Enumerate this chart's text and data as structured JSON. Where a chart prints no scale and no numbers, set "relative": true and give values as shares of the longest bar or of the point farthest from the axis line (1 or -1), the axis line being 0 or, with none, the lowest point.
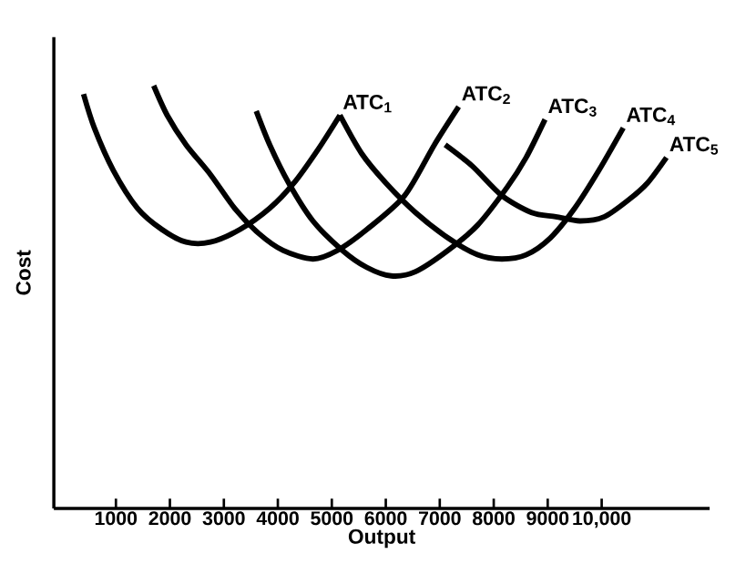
{
  "chart_data": {
    "type": "line",
    "xlabel": "Output",
    "ylabel": "Cost",
    "relative": true,
    "legend": false,
    "grid": false,
    "marker": "none",
    "line_style": "solid",
    "xlim": [
      -150,
      12000
    ],
    "xticks": [
      {
        "value": 1000,
        "label": "1000"
      },
      {
        "value": 2000,
        "label": "2000"
      },
      {
        "value": 3000,
        "label": "3000"
      },
      {
        "value": 4000,
        "label": "4000"
      },
      {
        "value": 5000,
        "label": "5000"
      },
      {
        "value": 6000,
        "label": "6000"
      },
      {
        "value": 7000,
        "label": "7000"
      },
      {
        "value": 8000,
        "label": "8000"
      },
      {
        "value": 9000,
        "label": "9000"
      },
      {
        "value": 10000,
        "label": "10,000"
      }
    ],
    "series": [
      {
        "name": "ATC$_{1}$",
        "color": "#000000",
        "x": [
          400,
          600,
          950,
          1400,
          1850,
          2300,
          2750,
          3300,
          3850,
          4300,
          4750,
          5150
        ],
        "values": [
          0.98,
          0.9,
          0.8,
          0.71,
          0.66,
          0.63,
          0.63,
          0.66,
          0.71,
          0.77,
          0.85,
          0.93
        ]
      },
      {
        "name": "ATC$_{2}$",
        "color": "#000000",
        "x": [
          1700,
          1950,
          2300,
          2750,
          3200,
          3650,
          4100,
          4650,
          5100,
          5650,
          6350,
          6900,
          7350
        ],
        "values": [
          1.0,
          0.93,
          0.86,
          0.79,
          0.71,
          0.65,
          0.61,
          0.59,
          0.61,
          0.66,
          0.74,
          0.86,
          0.95
        ]
      },
      {
        "name": "ATC$_{3}$",
        "color": "#000000",
        "x": [
          3600,
          3850,
          4200,
          4650,
          5200,
          5650,
          6100,
          6550,
          7150,
          7700,
          8250,
          8600,
          8950
        ],
        "values": [
          0.94,
          0.86,
          0.77,
          0.68,
          0.61,
          0.57,
          0.55,
          0.56,
          0.61,
          0.67,
          0.76,
          0.83,
          0.92
        ]
      },
      {
        "name": "ATC$_{4}$",
        "color": "#000000",
        "x": [
          5150,
          5550,
          6000,
          6550,
          7150,
          7700,
          8150,
          8600,
          9050,
          9500,
          9950,
          10400
        ],
        "values": [
          0.93,
          0.84,
          0.77,
          0.7,
          0.64,
          0.6,
          0.59,
          0.6,
          0.64,
          0.71,
          0.8,
          0.9
        ]
      },
      {
        "name": "ATC$_{5}$",
        "color": "#000000",
        "x": [
          7100,
          7600,
          8150,
          8700,
          9150,
          9600,
          10050,
          10500,
          10850,
          11200
        ],
        "values": [
          0.86,
          0.81,
          0.74,
          0.7,
          0.69,
          0.68,
          0.69,
          0.73,
          0.77,
          0.83
        ]
      }
    ]
  }
}
